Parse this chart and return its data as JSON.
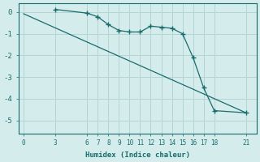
{
  "xlabel": "Humidex (Indice chaleur)",
  "bg_color": "#d4ecec",
  "grid_color": "#b5d5d5",
  "line_color": "#1a6b6b",
  "xticks": [
    0,
    3,
    6,
    7,
    8,
    9,
    10,
    11,
    12,
    13,
    14,
    15,
    16,
    17,
    18,
    21
  ],
  "yticks": [
    0,
    -1,
    -2,
    -3,
    -4,
    -5
  ],
  "ylim": [
    -5.6,
    0.4
  ],
  "xlim": [
    -0.5,
    22
  ],
  "marker_x": [
    3,
    6,
    7,
    8,
    9,
    10,
    11,
    12,
    13,
    14,
    15,
    16,
    17,
    18,
    21
  ],
  "marker_y": [
    0.12,
    -0.05,
    -0.22,
    -0.58,
    -0.85,
    -0.92,
    -0.92,
    -0.65,
    -0.7,
    -0.75,
    -1.0,
    -2.1,
    -3.5,
    -4.55,
    -4.65
  ],
  "smooth_x": [
    0,
    3,
    6,
    7,
    8,
    9,
    10,
    11,
    12,
    13,
    14,
    15,
    16,
    17,
    18,
    21
  ],
  "smooth_y": [
    -0.08,
    0.12,
    -0.05,
    -0.22,
    -0.58,
    -0.85,
    -0.92,
    -0.92,
    -0.65,
    -0.7,
    -0.75,
    -1.0,
    -2.1,
    -3.5,
    -4.55,
    -4.65
  ],
  "line2_x": [
    0,
    21
  ],
  "line2_y": [
    -0.08,
    -4.65
  ]
}
